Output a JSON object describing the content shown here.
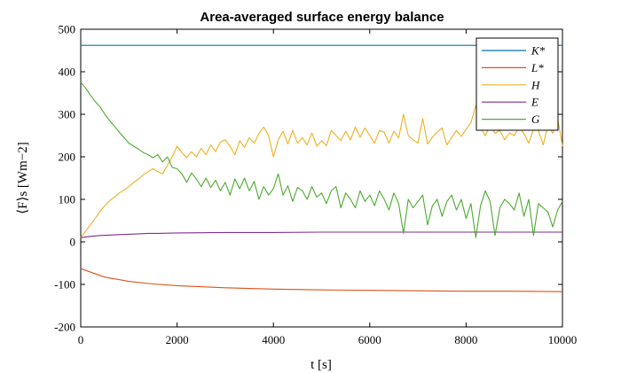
{
  "chart_data": {
    "type": "line",
    "title": "Area-averaged surface energy balance",
    "xlabel": "t [s]",
    "ylabel": "⟨F⟩s [Wm−2]",
    "xlim": [
      0,
      10000
    ],
    "ylim": [
      -200,
      500
    ],
    "xticks": [
      0,
      2000,
      4000,
      6000,
      8000,
      10000
    ],
    "yticks": [
      -200,
      -100,
      0,
      100,
      200,
      300,
      400,
      500
    ],
    "grid": false,
    "legend_position": "top-right",
    "series": [
      {
        "name": "K*",
        "color": "#0072BD",
        "x": [
          0,
          10000
        ],
        "y": [
          462,
          462
        ]
      },
      {
        "name": "L*",
        "color": "#D95319",
        "x": [
          0,
          500,
          1000,
          1500,
          2000,
          3000,
          4000,
          5000,
          6000,
          7000,
          8000,
          9000,
          10000
        ],
        "y": [
          -63,
          -83,
          -93,
          -99,
          -103,
          -108,
          -111,
          -113,
          -114,
          -115,
          -116,
          -116,
          -117
        ]
      },
      {
        "name": "H",
        "color": "#EDB120",
        "x": [
          0,
          100,
          200,
          300,
          400,
          500,
          600,
          700,
          800,
          900,
          1000,
          1100,
          1200,
          1300,
          1400,
          1500,
          1600,
          1700,
          1800,
          1900,
          2000,
          2100,
          2200,
          2300,
          2400,
          2500,
          2600,
          2700,
          2800,
          2900,
          3000,
          3100,
          3200,
          3300,
          3400,
          3500,
          3600,
          3700,
          3800,
          3900,
          4000,
          4100,
          4200,
          4300,
          4400,
          4500,
          4600,
          4700,
          4800,
          4900,
          5000,
          5100,
          5200,
          5300,
          5400,
          5500,
          5600,
          5700,
          5800,
          5900,
          6000,
          6100,
          6200,
          6300,
          6400,
          6500,
          6600,
          6700,
          6800,
          6900,
          7000,
          7100,
          7200,
          7300,
          7400,
          7500,
          7600,
          7700,
          7800,
          7900,
          8000,
          8100,
          8200,
          8300,
          8400,
          8500,
          8600,
          8700,
          8800,
          8900,
          9000,
          9100,
          9200,
          9300,
          9400,
          9500,
          9600,
          9700,
          9800,
          9900,
          10000
        ],
        "y": [
          10,
          25,
          40,
          55,
          72,
          85,
          97,
          105,
          115,
          122,
          130,
          140,
          148,
          158,
          165,
          172,
          165,
          160,
          180,
          200,
          225,
          210,
          198,
          212,
          200,
          220,
          205,
          228,
          212,
          235,
          240,
          225,
          205,
          238,
          222,
          245,
          232,
          255,
          270,
          250,
          200,
          240,
          260,
          230,
          262,
          232,
          245,
          228,
          256,
          225,
          238,
          226,
          262,
          250,
          238,
          260,
          240,
          270,
          246,
          268,
          250,
          232,
          262,
          258,
          232,
          260,
          245,
          300,
          250,
          240,
          232,
          290,
          230,
          246,
          258,
          268,
          228,
          245,
          262,
          248,
          265,
          280,
          320,
          268,
          250,
          275,
          255,
          262,
          240,
          256,
          250,
          270,
          255,
          232,
          265,
          262,
          228,
          275,
          255,
          290,
          225
        ]
      },
      {
        "name": "E",
        "color": "#7E2F8E",
        "x": [
          0,
          200,
          400,
          600,
          800,
          1000,
          1200,
          1400,
          1600,
          2000,
          3000,
          4000,
          5000,
          6000,
          7000,
          8000,
          9000,
          10000
        ],
        "y": [
          10,
          13,
          15,
          16,
          17,
          18,
          19,
          20,
          20,
          21,
          22,
          22,
          23,
          23,
          23,
          23,
          23,
          23
        ]
      },
      {
        "name": "G",
        "color": "#4DAA2F",
        "x": [
          0,
          100,
          200,
          300,
          400,
          500,
          600,
          700,
          800,
          900,
          1000,
          1100,
          1200,
          1300,
          1400,
          1500,
          1600,
          1700,
          1800,
          1900,
          2000,
          2100,
          2200,
          2300,
          2400,
          2500,
          2600,
          2700,
          2800,
          2900,
          3000,
          3100,
          3200,
          3300,
          3400,
          3500,
          3600,
          3700,
          3800,
          3900,
          4000,
          4100,
          4200,
          4300,
          4400,
          4500,
          4600,
          4700,
          4800,
          4900,
          5000,
          5100,
          5200,
          5300,
          5400,
          5500,
          5600,
          5700,
          5800,
          5900,
          6000,
          6100,
          6200,
          6300,
          6400,
          6500,
          6600,
          6700,
          6800,
          6900,
          7000,
          7100,
          7200,
          7300,
          7400,
          7500,
          7600,
          7700,
          7800,
          7900,
          8000,
          8100,
          8200,
          8300,
          8400,
          8500,
          8600,
          8700,
          8800,
          8900,
          9000,
          9100,
          9200,
          9300,
          9400,
          9500,
          9600,
          9700,
          9800,
          9900,
          10000
        ],
        "y": [
          375,
          362,
          345,
          330,
          318,
          300,
          285,
          272,
          258,
          245,
          232,
          225,
          218,
          210,
          205,
          198,
          205,
          188,
          200,
          175,
          172,
          160,
          140,
          162,
          148,
          130,
          150,
          128,
          145,
          120,
          140,
          110,
          148,
          125,
          150,
          120,
          142,
          100,
          130,
          110,
          125,
          160,
          110,
          132,
          95,
          128,
          120,
          100,
          130,
          105,
          115,
          90,
          120,
          130,
          80,
          115,
          100,
          80,
          120,
          95,
          110,
          85,
          120,
          100,
          75,
          115,
          90,
          20,
          100,
          80,
          95,
          110,
          40,
          85,
          100,
          60,
          95,
          110,
          75,
          100,
          55,
          90,
          10,
          85,
          120,
          95,
          15,
          80,
          100,
          90,
          75,
          115,
          60,
          100,
          15,
          90,
          80,
          70,
          35,
          75,
          95
        ]
      }
    ]
  }
}
